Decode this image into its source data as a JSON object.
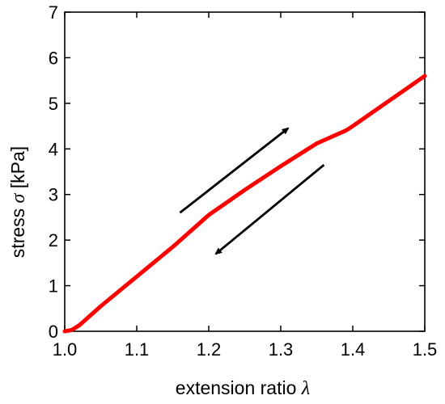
{
  "chart_data": {
    "type": "line",
    "title": "",
    "xlabel": {
      "text": "extension ratio ",
      "symbol": "λ"
    },
    "ylabel": {
      "text": "stress ",
      "symbol": "σ",
      "unit": " [kPa]"
    },
    "xlim": [
      1.0,
      1.5
    ],
    "ylim": [
      0,
      7
    ],
    "xticks": [
      "1.0",
      "1.1",
      "1.2",
      "1.3",
      "1.4",
      "1.5"
    ],
    "yticks": [
      "0",
      "1",
      "2",
      "3",
      "4",
      "5",
      "6",
      "7"
    ],
    "grid": false,
    "legend": "none",
    "series": [
      {
        "color": "#ff0000",
        "x": [
          1.0,
          1.01,
          1.02,
          1.05,
          1.1,
          1.15,
          1.2,
          1.25,
          1.3,
          1.35,
          1.39,
          1.4,
          1.45,
          1.5
        ],
        "y": [
          0.0,
          0.03,
          0.13,
          0.55,
          1.2,
          1.85,
          2.55,
          3.1,
          3.62,
          4.12,
          4.4,
          4.5,
          5.05,
          5.6
        ]
      }
    ],
    "annotations": [
      {
        "type": "arrow",
        "direction": "up-right",
        "from": [
          1.16,
          2.6
        ],
        "to": [
          1.31,
          4.45
        ],
        "color": "#000000"
      },
      {
        "type": "arrow",
        "direction": "down-left",
        "from": [
          1.36,
          3.65
        ],
        "to": [
          1.21,
          1.7
        ],
        "color": "#000000"
      }
    ]
  }
}
